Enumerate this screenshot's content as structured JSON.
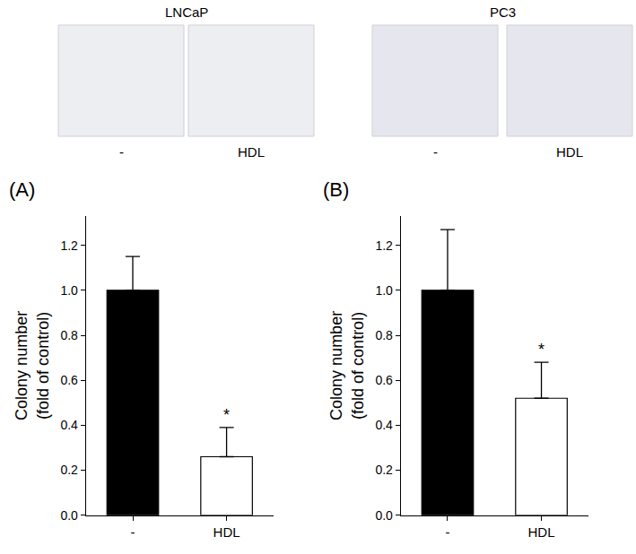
{
  "panels": [
    {
      "label": "LNCaP",
      "captions": [
        "-",
        "HDL"
      ]
    },
    {
      "label": "PC3",
      "captions": [
        "-",
        "HDL"
      ]
    }
  ],
  "chart_data": [
    {
      "type": "bar",
      "title": "(A)",
      "y_label": "Colony number\n(fold of control)",
      "categories": [
        "-",
        "HDL"
      ],
      "values": [
        1.0,
        0.26
      ],
      "errors": [
        0.15,
        0.13
      ],
      "colors": [
        "#000000",
        "#ffffff"
      ],
      "ylim": [
        0,
        1.33
      ],
      "yticks": [
        {
          "value": 0,
          "label": "0.0"
        },
        {
          "value": 0.2,
          "label": "0.2"
        },
        {
          "value": 0.4,
          "label": "0.4"
        },
        {
          "value": 0.6,
          "label": "0.6"
        },
        {
          "value": 0.8,
          "label": "0.8"
        },
        {
          "value": 1.0,
          "label": "1.0"
        },
        {
          "value": 1.2,
          "label": "1.2"
        }
      ],
      "annotations": [
        {
          "category": "HDL",
          "text": "*"
        }
      ],
      "grid": false
    },
    {
      "type": "bar",
      "title": "(B)",
      "y_label": "Colony number\n(fold of control)",
      "categories": [
        "-",
        "HDL"
      ],
      "values": [
        1.0,
        0.52
      ],
      "errors": [
        0.27,
        0.16
      ],
      "colors": [
        "#000000",
        "#ffffff"
      ],
      "ylim": [
        0,
        1.33
      ],
      "yticks": [
        {
          "value": 0,
          "label": "0.0"
        },
        {
          "value": 0.2,
          "label": "0.2"
        },
        {
          "value": 0.4,
          "label": "0.4"
        },
        {
          "value": 0.6,
          "label": "0.6"
        },
        {
          "value": 0.8,
          "label": "0.8"
        },
        {
          "value": 1.0,
          "label": "1.0"
        },
        {
          "value": 1.2,
          "label": "1.2"
        }
      ],
      "annotations": [
        {
          "category": "HDL",
          "text": "*"
        }
      ],
      "grid": false
    }
  ]
}
